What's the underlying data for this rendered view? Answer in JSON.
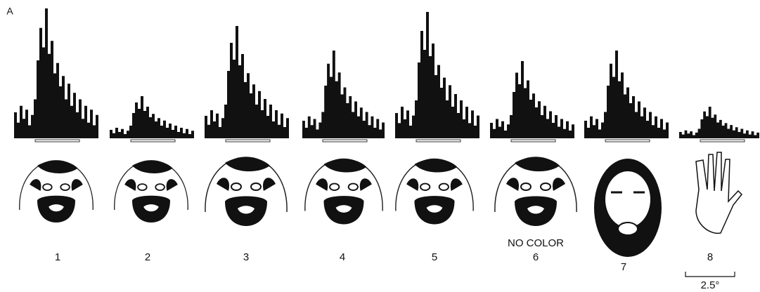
{
  "panel_label": "A",
  "stimuli": [
    {
      "label": "1"
    },
    {
      "label": "2"
    },
    {
      "label": "3"
    },
    {
      "label": "4"
    },
    {
      "label": "5"
    },
    {
      "label": "6",
      "note": "NO COLOR"
    },
    {
      "label": "7"
    },
    {
      "label": "8"
    }
  ],
  "scale_bar": "2.5°"
}
